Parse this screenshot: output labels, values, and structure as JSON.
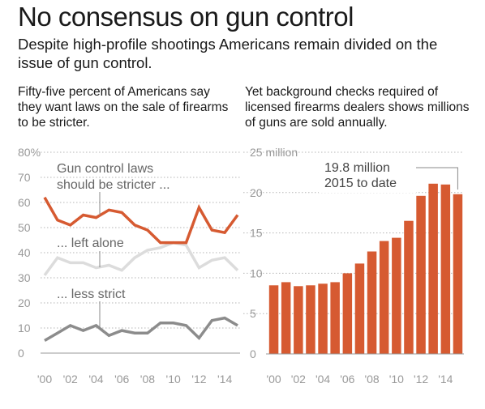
{
  "title": "No consensus on gun control",
  "subtitle": "Despite high-profile shootings Americans remain divided on the issue of gun control.",
  "left_description": "Fifty-five percent of Americans say they want laws on the sale of firearms to be stricter.",
  "right_description": "Yet background checks required of licensed firearms dealers shows millions of guns are sold annually.",
  "colors": {
    "accent": "#d65a31",
    "light_gray": "#dcdcdc",
    "dark_gray": "#8c8c8c",
    "text_gray": "#999999"
  },
  "chart_data": [
    {
      "type": "line",
      "ylim": [
        0,
        80
      ],
      "y_ticks": [
        0,
        10,
        20,
        30,
        40,
        50,
        60,
        70,
        80
      ],
      "y_tick_labels": [
        "0",
        "10",
        "20",
        "30",
        "40",
        "50",
        "60",
        "70",
        "80%"
      ],
      "x_tick_labels": [
        "'00",
        "'02",
        "'04",
        "'06",
        "'08",
        "'10",
        "'12",
        "'14"
      ],
      "x": [
        2000,
        2001,
        2002,
        2003,
        2004,
        2005,
        2006,
        2007,
        2008,
        2009,
        2010,
        2011,
        2012,
        2013,
        2014,
        2015
      ],
      "grid": true,
      "series": [
        {
          "key": "stricter",
          "label_lines": [
            "Gun control laws",
            "should be stricter ..."
          ],
          "color": "#d65a31",
          "values": [
            62,
            53,
            51,
            55,
            54,
            57,
            56,
            51,
            49,
            44,
            44,
            44,
            58,
            49,
            48,
            55
          ]
        },
        {
          "key": "alone",
          "label_lines": [
            "... left alone"
          ],
          "color": "#dcdcdc",
          "values": [
            31,
            38,
            36,
            36,
            34,
            35,
            33,
            38,
            41,
            42,
            44,
            43,
            34,
            37,
            38,
            33
          ]
        },
        {
          "key": "less",
          "label_lines": [
            "... less strict"
          ],
          "color": "#8c8c8c",
          "values": [
            5,
            8,
            11,
            9,
            11,
            7,
            9,
            8,
            8,
            12,
            12,
            11,
            6,
            13,
            14,
            11
          ]
        }
      ]
    },
    {
      "type": "bar",
      "ylim": [
        0,
        25
      ],
      "y_ticks": [
        0,
        5,
        10,
        15,
        20,
        25
      ],
      "y_tick_labels": [
        "0",
        "5",
        "10",
        "15",
        "20",
        "25 million"
      ],
      "x_tick_labels": [
        "'00",
        "'02",
        "'04",
        "'06",
        "'08",
        "'10",
        "'12",
        "'14"
      ],
      "categories": [
        2000,
        2001,
        2002,
        2003,
        2004,
        2005,
        2006,
        2007,
        2008,
        2009,
        2010,
        2011,
        2012,
        2013,
        2014,
        2015
      ],
      "values": [
        8.5,
        8.9,
        8.4,
        8.5,
        8.7,
        8.9,
        10.0,
        11.2,
        12.7,
        14.0,
        14.4,
        16.5,
        19.6,
        21.1,
        21.0,
        19.8
      ],
      "color": "#d65a31",
      "annotation_lines": [
        "19.8 million",
        "2015 to date"
      ],
      "grid": true
    }
  ]
}
